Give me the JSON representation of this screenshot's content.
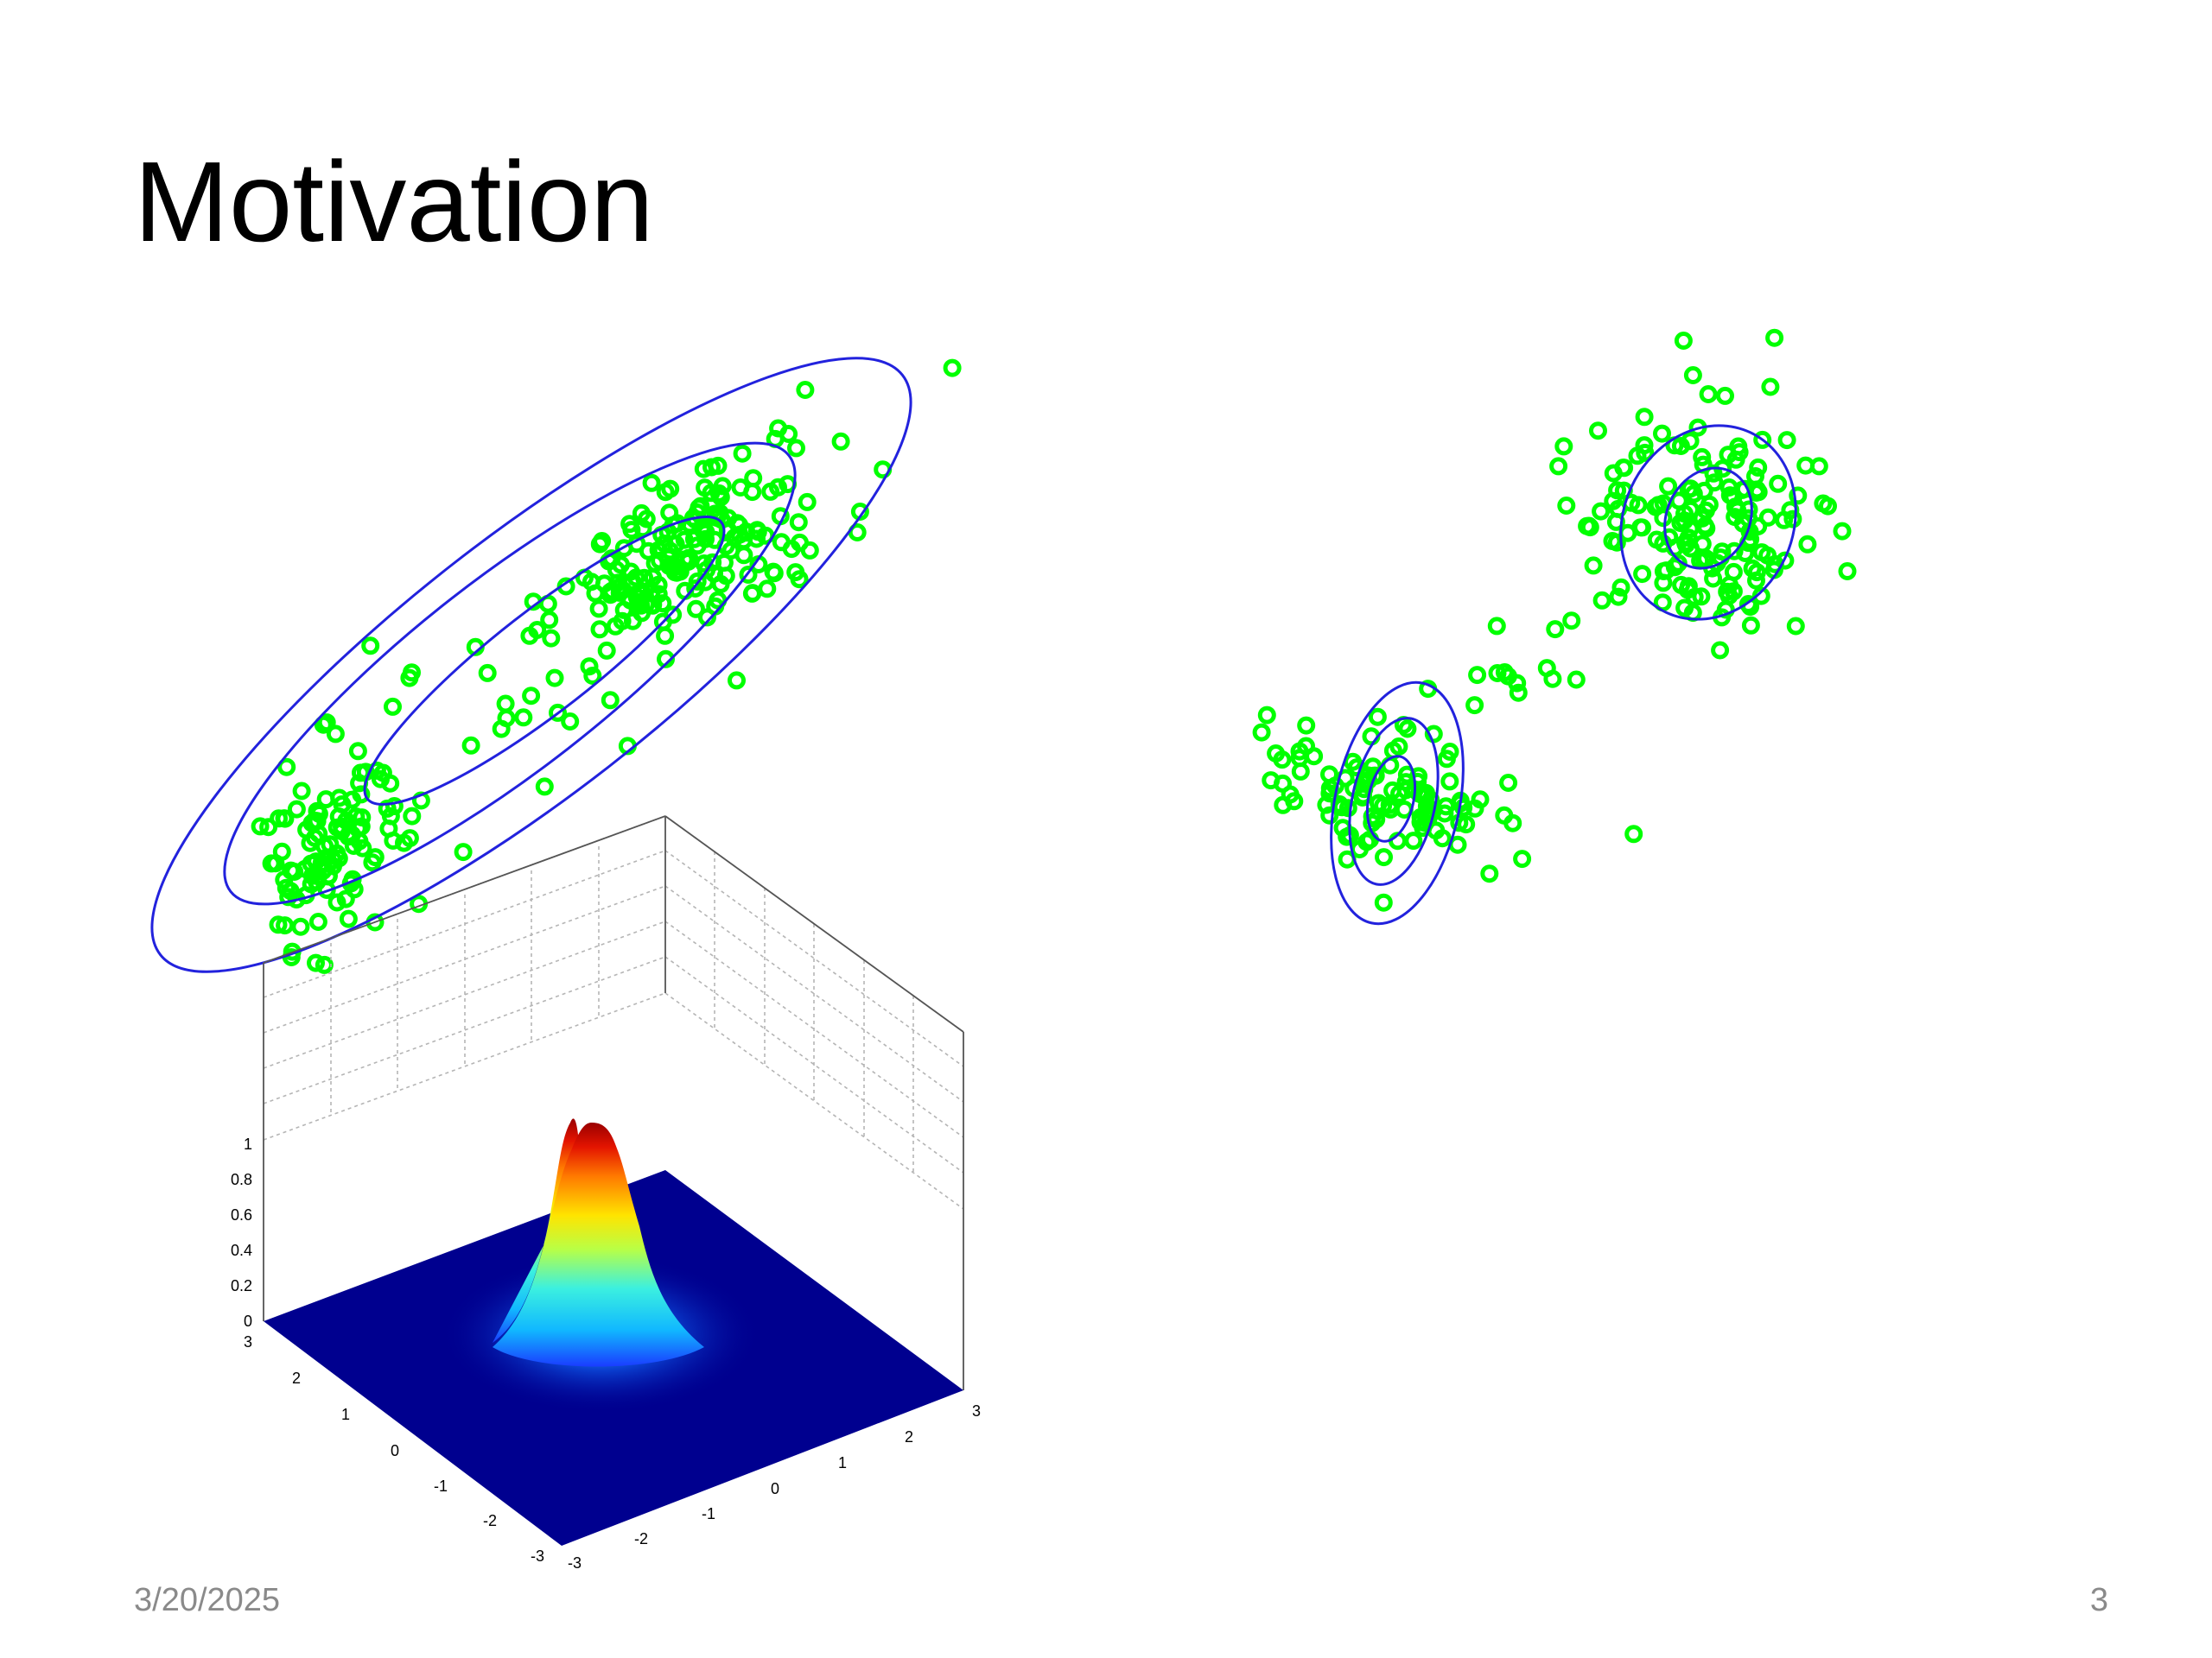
{
  "slide": {
    "title": "Motivation",
    "date": "3/20/2025",
    "page_number": "3"
  },
  "colors": {
    "points": "#00ff00",
    "contours": "#2222dd",
    "surface_floor": "#00008f",
    "grid": "#b0b0b0"
  },
  "surface_plot": {
    "z_ticks": [
      "0",
      "0.2",
      "0.4",
      "0.6",
      "0.8",
      "1"
    ],
    "x_ticks": [
      "-3",
      "-2",
      "-1",
      "0",
      "1",
      "2",
      "3"
    ],
    "y_ticks": [
      "-3",
      "-2",
      "-1",
      "0",
      "1",
      "2",
      "3"
    ]
  }
}
